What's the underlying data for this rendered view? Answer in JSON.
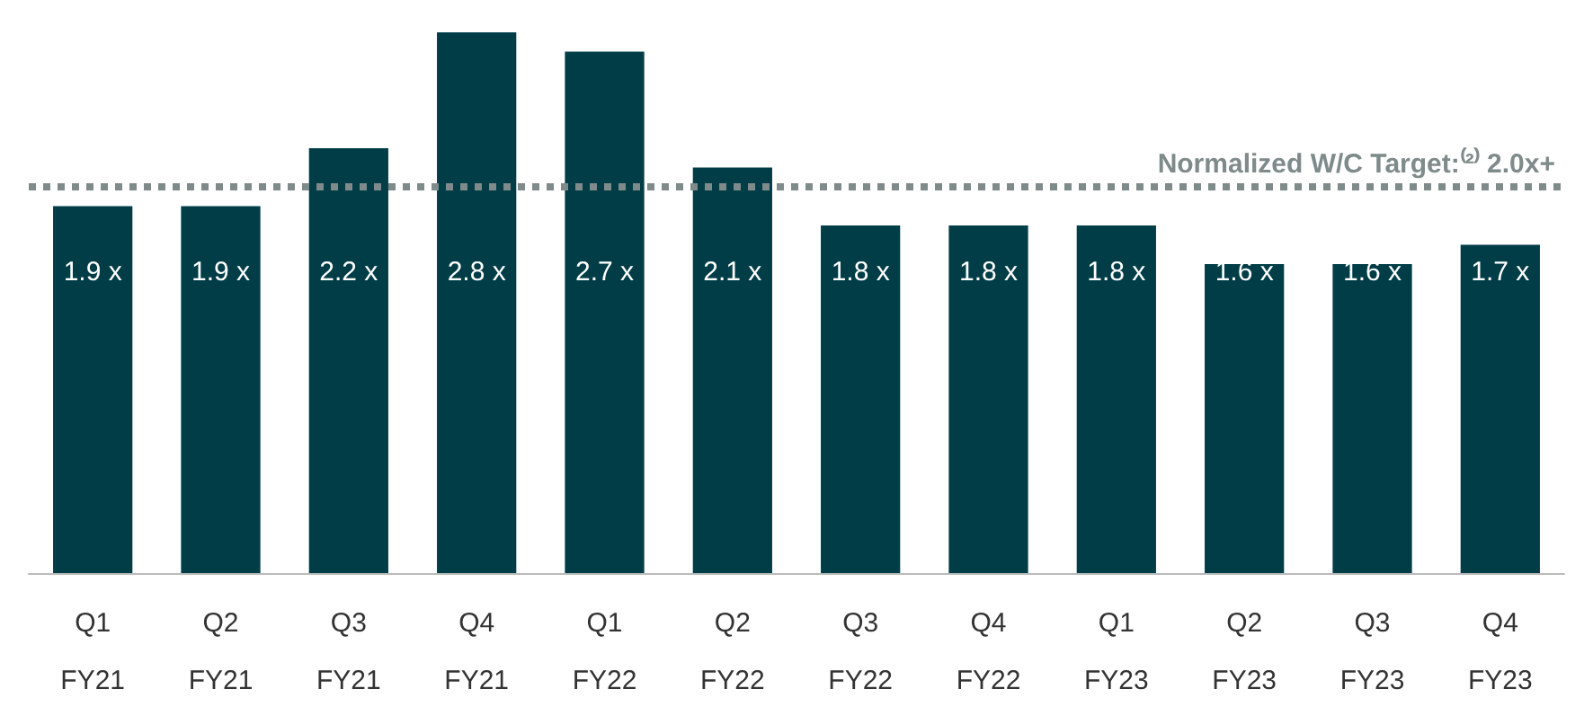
{
  "chart_data": {
    "type": "bar",
    "categories": [
      "Q1\nFY21",
      "Q2\nFY21",
      "Q3\nFY21",
      "Q4\nFY21",
      "Q1\nFY22",
      "Q2\nFY22",
      "Q3\nFY22",
      "Q4\nFY22",
      "Q1\nFY23",
      "Q2\nFY23",
      "Q3\nFY23",
      "Q4\nFY23"
    ],
    "values": [
      1.9,
      1.9,
      2.2,
      2.8,
      2.7,
      2.1,
      1.8,
      1.8,
      1.8,
      1.6,
      1.6,
      1.7
    ],
    "value_labels": [
      "1.9 x",
      "1.9 x",
      "2.2 x",
      "2.8 x",
      "2.7 x",
      "2.1 x",
      "1.8 x",
      "1.8 x",
      "1.8 x",
      "1.6 x",
      "1.6 x",
      "1.7 x"
    ],
    "color": "#003d47",
    "ref_lines": [
      {
        "axis": "y",
        "value": 2.0,
        "label": "Normalized W/C Target:⁽²⁾ 2.0x+",
        "color": "#7f8a8a",
        "line_style": "dotted"
      }
    ],
    "grid": false
  }
}
